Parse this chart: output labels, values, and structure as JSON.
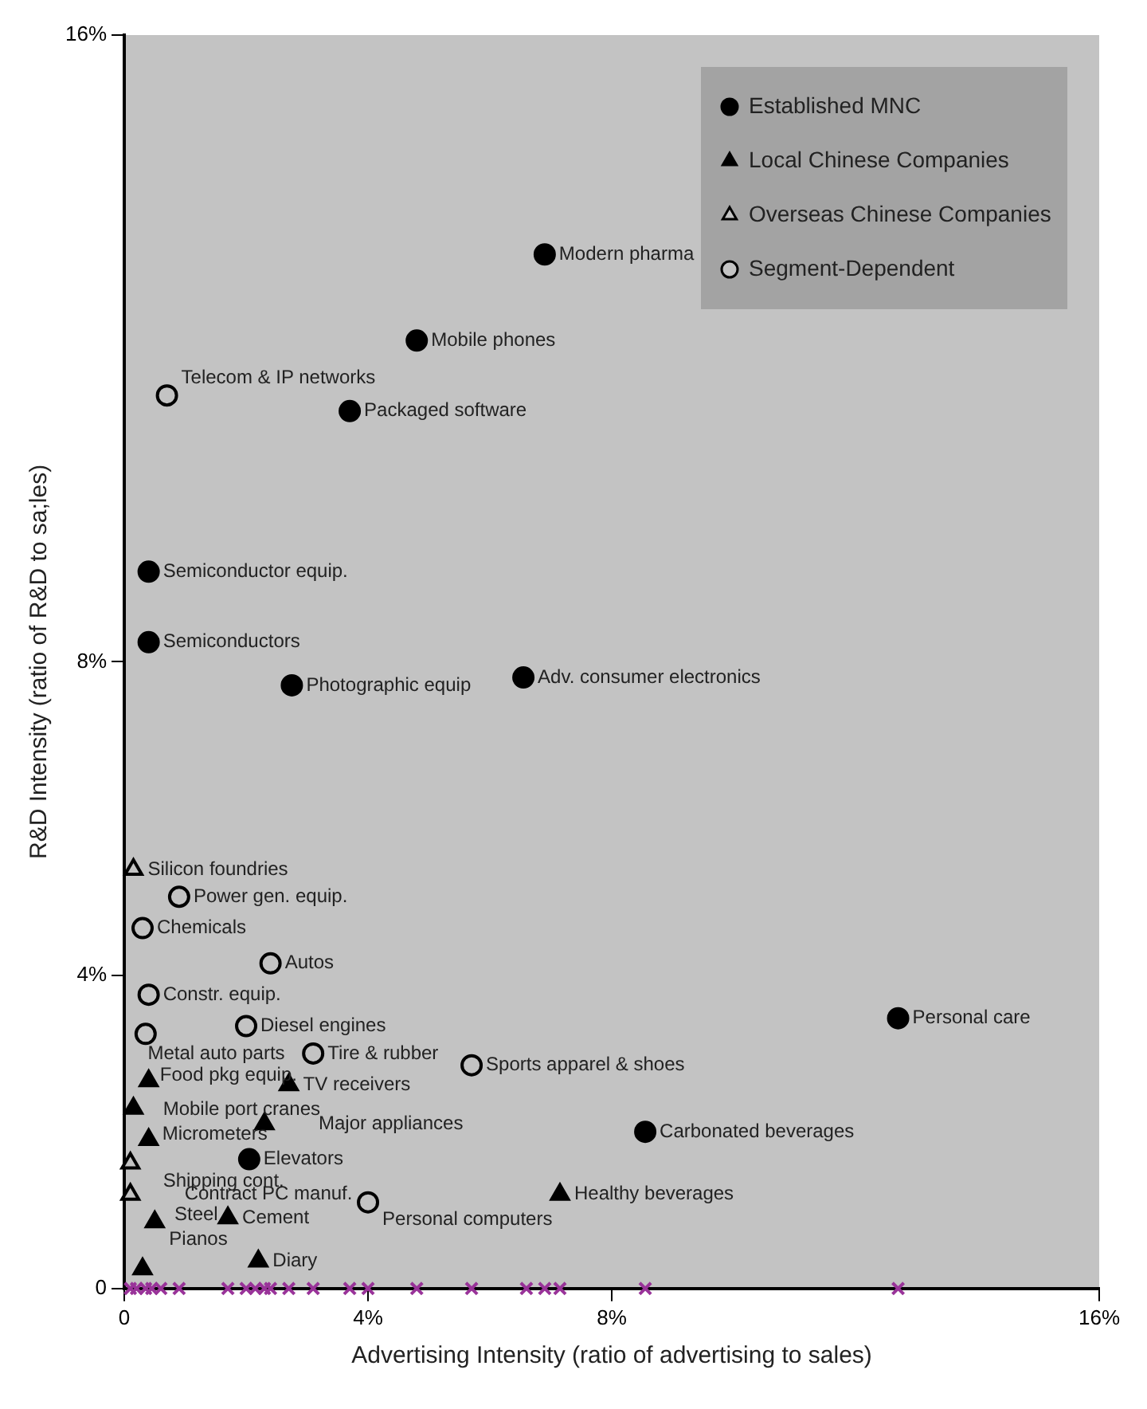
{
  "chart_data": {
    "type": "scatter",
    "xlabel": "Advertising Intensity (ratio of advertising to sales)",
    "ylabel": "R&D Intensity (ratio of R&D to sa;les)",
    "xlim": [
      0,
      16
    ],
    "ylim": [
      0,
      16
    ],
    "xticks": [
      0,
      {
        "value": 4,
        "label": "4%"
      },
      {
        "value": 8,
        "label": "8%"
      },
      {
        "value": 16,
        "label": "16%"
      }
    ],
    "yticks": [
      0,
      {
        "value": 4,
        "label": "4%"
      },
      {
        "value": 8,
        "label": "8%"
      },
      {
        "value": 16,
        "label": "16%"
      }
    ],
    "grid": false,
    "legend": "top right",
    "series": [
      {
        "name": "Established MNC",
        "color": "#000000",
        "marker": "circle",
        "x": [
          6.9,
          4.8,
          3.7,
          0.4,
          0.4,
          2.75,
          6.55,
          12.7,
          8.55,
          2.05
        ],
        "values": [
          13.2,
          12.1,
          11.2,
          9.15,
          8.25,
          7.7,
          7.8,
          3.45,
          2.0,
          1.65
        ]
      },
      {
        "name": "Local Chinese Companies",
        "color": "#000000",
        "marker": "triangle",
        "x": [
          0.4,
          0.15,
          0.4,
          2.7,
          2.3,
          7.15,
          0.5,
          1.7,
          2.2,
          0.3
        ],
        "values": [
          2.65,
          2.3,
          1.9,
          2.6,
          2.1,
          1.2,
          0.85,
          0.9,
          0.35,
          0.25
        ]
      },
      {
        "name": "Overseas Chinese Companies",
        "marker": "triangle",
        "color": "#c3c3c3",
        "x": [
          0.15,
          0.1,
          0.1
        ],
        "values": [
          5.35,
          1.6,
          1.2
        ]
      },
      {
        "name": "Segment-Dependent",
        "color": "#c3c3c3",
        "marker": "circle",
        "x": [
          0.7,
          0.9,
          0.3,
          2.4,
          0.4,
          0.35,
          2.0,
          3.1,
          5.7,
          4.0
        ],
        "values": [
          11.4,
          5.0,
          4.6,
          4.15,
          3.75,
          3.25,
          3.35,
          3.0,
          2.85,
          1.1
        ]
      },
      {
        "color": "#993399",
        "marker": "cross",
        "x": [
          0.1,
          0.2,
          0.35,
          0.45,
          0.6,
          0.9,
          1.7,
          2.0,
          2.15,
          2.3,
          2.4,
          2.7,
          3.1,
          3.7,
          4.0,
          4.8,
          5.7,
          6.6,
          6.9,
          7.15,
          8.55,
          12.7
        ],
        "values": [
          0,
          0,
          0,
          0,
          0,
          0,
          0,
          0,
          0,
          0,
          0,
          0,
          0,
          0,
          0,
          0,
          0,
          0,
          0,
          0,
          0,
          0
        ]
      }
    ],
    "annotations": [
      {
        "text": "Modern pharma",
        "x": 6.9,
        "y": 13.2
      },
      {
        "text": "Mobile phones",
        "x": 4.8,
        "y": 12.1
      },
      {
        "text": "Packaged software",
        "x": 3.7,
        "y": 11.2
      },
      {
        "text": "Semiconductor equip.",
        "x": 0.4,
        "y": 9.15
      },
      {
        "text": "Semiconductors",
        "x": 0.4,
        "y": 8.25
      },
      {
        "text": "Photographic equip",
        "x": 2.75,
        "y": 7.7
      },
      {
        "text": "Adv. consumer electronics",
        "x": 6.55,
        "y": 7.8
      },
      {
        "text": "Personal care",
        "x": 12.7,
        "y": 3.45
      },
      {
        "text": "Carbonated beverages",
        "x": 8.55,
        "y": 2.0
      },
      {
        "text": "Elevators",
        "x": 2.05,
        "y": 1.65
      },
      {
        "text": "Mobile port cranes",
        "x": 0.4,
        "y": 2.65
      },
      {
        "text": "Metal auto parts",
        "x": 0.15,
        "y": 2.3
      },
      {
        "text": "Shipping cont.",
        "x": 0.4,
        "y": 1.9
      },
      {
        "text": "TV receivers",
        "x": 2.7,
        "y": 2.6
      },
      {
        "text": "Major appliances",
        "x": 2.3,
        "y": 2.1
      },
      {
        "text": "Healthy beverages",
        "x": 7.15,
        "y": 1.2
      },
      {
        "text": "Pianos",
        "x": 0.5,
        "y": 0.85
      },
      {
        "text": "Cement",
        "x": 1.7,
        "y": 0.9
      },
      {
        "text": "Diary",
        "x": 2.2,
        "y": 0.35
      },
      {
        "text": "Steel",
        "x": 0.3,
        "y": 0.25
      },
      {
        "text": "Silicon foundries",
        "x": 0.15,
        "y": 5.35
      },
      {
        "text": "Micrometers",
        "x": 0.1,
        "y": 1.6
      },
      {
        "text": "Contract PC manuf.",
        "x": 0.1,
        "y": 1.2
      },
      {
        "text": "Telecom & IP networks",
        "x": 0.7,
        "y": 11.4
      },
      {
        "text": "Power gen. equip.",
        "x": 0.9,
        "y": 5.0
      },
      {
        "text": "Chemicals",
        "x": 0.3,
        "y": 4.6
      },
      {
        "text": "Autos",
        "x": 2.4,
        "y": 4.15
      },
      {
        "text": "Constr. equip.",
        "x": 0.4,
        "y": 3.75
      },
      {
        "text": "Food pkg equip.",
        "x": 0.35,
        "y": 3.25
      },
      {
        "text": "Diesel engines",
        "x": 2.0,
        "y": 3.35
      },
      {
        "text": "Tire & rubber",
        "x": 3.1,
        "y": 3.0
      },
      {
        "text": "Sports apparel & shoes",
        "x": 5.7,
        "y": 2.85
      },
      {
        "text": "Personal computers",
        "x": 4.0,
        "y": 1.1
      }
    ]
  }
}
